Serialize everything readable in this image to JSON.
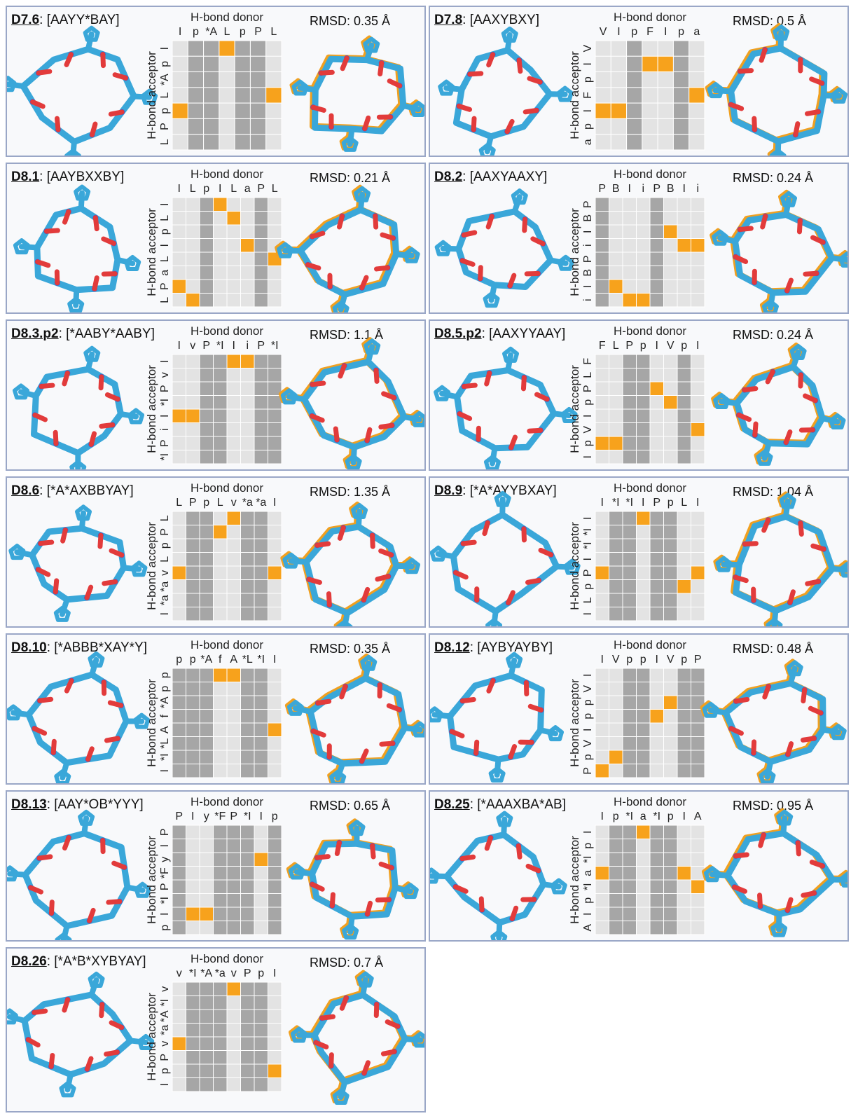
{
  "axis": {
    "donor_title": "H-bond donor",
    "acceptor_title": "H-bond acceptor"
  },
  "colors": {
    "hbond": "#f7a21c",
    "gap": "#a6a6a6",
    "bg": "#e3e3e3",
    "grid": "#ffffff",
    "blue": "#3aa7d9",
    "orange": "#f0a020",
    "nitrogen": "#3d56d6",
    "oxygen": "#e23b3b"
  },
  "panels": [
    {
      "name": "D7.6",
      "seq": "[AAYY*BAY]",
      "rmsd": "RMSD: 0.35 Å",
      "labels": [
        "I",
        "p",
        "*A",
        "L",
        "p",
        "P",
        "L"
      ],
      "gaps": [
        1,
        2,
        4,
        5
      ],
      "hits": [
        [
          0,
          3
        ],
        [
          3,
          6
        ],
        [
          4,
          0
        ]
      ]
    },
    {
      "name": "D7.8",
      "seq": "[AAXYBXY]",
      "rmsd": "RMSD: 0.5 Å",
      "labels": [
        "V",
        "I",
        "p",
        "F",
        "I",
        "p",
        "a"
      ],
      "gaps": [
        2,
        5
      ],
      "hits": [
        [
          1,
          3
        ],
        [
          1,
          4
        ],
        [
          3,
          6
        ],
        [
          4,
          0
        ],
        [
          4,
          1
        ]
      ]
    },
    {
      "name": "D8.1",
      "seq": "[AAYBXXBY]",
      "rmsd": "RMSD: 0.21 Å",
      "labels": [
        "I",
        "L",
        "p",
        "I",
        "L",
        "a",
        "P",
        "L"
      ],
      "gaps": [
        2,
        6
      ],
      "hits": [
        [
          0,
          3
        ],
        [
          1,
          4
        ],
        [
          3,
          5
        ],
        [
          4,
          7
        ],
        [
          6,
          0
        ],
        [
          7,
          1
        ]
      ]
    },
    {
      "name": "D8.2",
      "seq": "[AAXYAAXY]",
      "rmsd": "RMSD: 0.24 Å",
      "labels": [
        "P",
        "B",
        "I",
        "i",
        "P",
        "B",
        "I",
        "i"
      ],
      "gaps": [
        0,
        4
      ],
      "hits": [
        [
          2,
          5
        ],
        [
          3,
          6
        ],
        [
          3,
          7
        ],
        [
          6,
          1
        ],
        [
          7,
          2
        ],
        [
          7,
          3
        ]
      ]
    },
    {
      "name": "D8.3.p2",
      "seq": "[*AABY*AABY]",
      "rmsd": "RMSD: 1.1 Å",
      "labels": [
        "I",
        "v",
        "P",
        "*I",
        "I",
        "i",
        "P",
        "*I"
      ],
      "gaps": [
        2,
        3,
        6,
        7
      ],
      "hits": [
        [
          0,
          4
        ],
        [
          0,
          5
        ],
        [
          4,
          0
        ],
        [
          4,
          1
        ]
      ]
    },
    {
      "name": "D8.5.p2",
      "seq": "[AAXYYAAY]",
      "rmsd": "RMSD: 0.24 Å",
      "labels": [
        "F",
        "L",
        "P",
        "p",
        "I",
        "V",
        "p",
        "I"
      ],
      "gaps": [
        2,
        3,
        6
      ],
      "hits": [
        [
          2,
          4
        ],
        [
          3,
          5
        ],
        [
          5,
          7
        ],
        [
          6,
          0
        ],
        [
          6,
          1
        ]
      ]
    },
    {
      "name": "D8.6",
      "seq": "[*A*AXBBYAY]",
      "rmsd": "RMSD: 1.35 Å",
      "labels": [
        "L",
        "P",
        "p",
        "L",
        "v",
        "*a",
        "*a",
        "I"
      ],
      "gaps": [
        1,
        2,
        5,
        6
      ],
      "hits": [
        [
          0,
          4
        ],
        [
          1,
          3
        ],
        [
          4,
          0
        ],
        [
          4,
          7
        ]
      ]
    },
    {
      "name": "D8.9",
      "seq": "[*A*AYYBXAY]",
      "rmsd": "RMSD: 1.04 Å",
      "labels": [
        "I",
        "*I",
        "*I",
        "I",
        "P",
        "p",
        "L",
        "I"
      ],
      "gaps": [
        1,
        2,
        4,
        5
      ],
      "hits": [
        [
          0,
          3
        ],
        [
          4,
          0
        ],
        [
          4,
          7
        ],
        [
          5,
          6
        ]
      ]
    },
    {
      "name": "D8.10",
      "seq": "[*ABBB*XAY*Y]",
      "rmsd": "RMSD: 0.35 Å",
      "labels": [
        "p",
        "p",
        "*A",
        "f",
        "A",
        "*L",
        "*I",
        "I"
      ],
      "gaps": [
        0,
        1,
        2,
        5,
        6
      ],
      "hits": [
        [
          0,
          3
        ],
        [
          0,
          4
        ],
        [
          4,
          7
        ]
      ]
    },
    {
      "name": "D8.12",
      "seq": "[AYBYAYBY]",
      "rmsd": "RMSD: 0.48 Å",
      "labels": [
        "I",
        "V",
        "p",
        "p",
        "I",
        "V",
        "p",
        "P"
      ],
      "gaps": [
        2,
        3,
        6,
        7
      ],
      "hits": [
        [
          2,
          5
        ],
        [
          3,
          4
        ],
        [
          6,
          1
        ],
        [
          7,
          0
        ]
      ]
    },
    {
      "name": "D8.13",
      "seq": "[AAY*OB*YYY]",
      "rmsd": "RMSD: 0.65 Å",
      "labels": [
        "P",
        "I",
        "y",
        "*F",
        "P",
        "*I",
        "I",
        "p"
      ],
      "gaps": [
        0,
        3,
        4,
        5,
        7
      ],
      "hits": [
        [
          2,
          6
        ],
        [
          6,
          1
        ],
        [
          6,
          2
        ]
      ]
    },
    {
      "name": "D8.25",
      "seq": "[*AAAXBA*AB]",
      "rmsd": "RMSD: 0.95 Å",
      "labels": [
        "I",
        "p",
        "*I",
        "a",
        "*I",
        "p",
        "I",
        "A"
      ],
      "gaps": [
        1,
        2,
        4,
        5
      ],
      "hits": [
        [
          0,
          3
        ],
        [
          3,
          0
        ],
        [
          3,
          6
        ],
        [
          4,
          7
        ]
      ]
    },
    {
      "name": "D8.26",
      "seq": "[*A*B*XYBYAY]",
      "rmsd": "RMSD: 0.7 Å",
      "labels": [
        "v",
        "*I",
        "*A",
        "*a",
        "v",
        "P",
        "p",
        "I"
      ],
      "gaps": [
        1,
        2,
        3,
        5,
        6
      ],
      "hits": [
        [
          0,
          4
        ],
        [
          4,
          0
        ],
        [
          6,
          7
        ]
      ]
    }
  ]
}
